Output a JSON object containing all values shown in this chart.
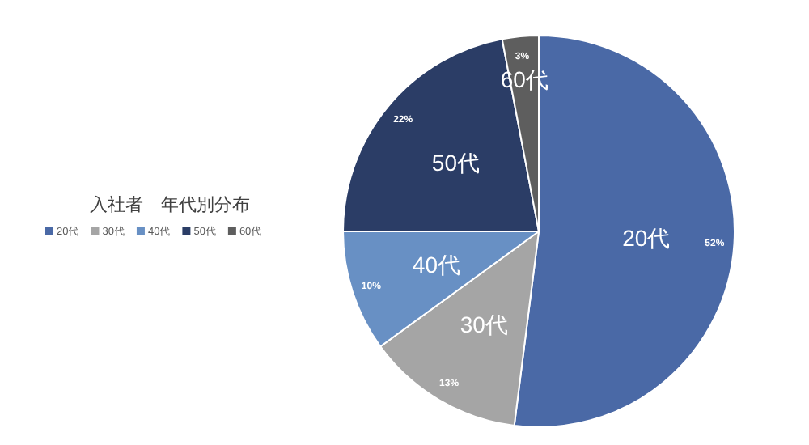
{
  "chart_data": {
    "type": "pie",
    "title": "入社者　年代別分布",
    "categories": [
      "20代",
      "30代",
      "40代",
      "50代",
      "60代"
    ],
    "values": [
      52,
      13,
      10,
      22,
      3
    ],
    "value_labels": [
      "52%",
      "13%",
      "10%",
      "22%",
      "3%"
    ],
    "colors": [
      "#4a69a6",
      "#a5a5a5",
      "#6890c4",
      "#2b3d66",
      "#5e5e5e"
    ],
    "legend": "left"
  }
}
